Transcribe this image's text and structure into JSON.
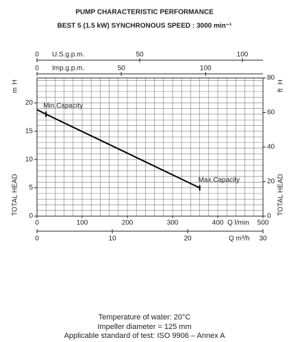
{
  "chart_data": {
    "type": "line",
    "title": "PUMP CHARACTERISTIC PERFORMANCE",
    "subtitle": "BEST 5  (1.5 kW) SYNCHRONOUS SPEED : 3000 min⁻¹",
    "x": [
      0,
      20,
      360
    ],
    "values": [
      18.8,
      18,
      5
    ],
    "color": "#000000",
    "xlim": [
      0,
      500
    ],
    "xticks": [
      0,
      100,
      200,
      300,
      400,
      500
    ],
    "xlabel": "Q  l/min",
    "ylim": [
      0,
      24.4
    ],
    "yticks": [
      0,
      5,
      10,
      15,
      20
    ],
    "ylabel": "TOTAL HEAD",
    "ysymbol": "H",
    "yunit": "m",
    "y2lim": [
      0,
      80
    ],
    "y2ticks": [
      0,
      20,
      40,
      60,
      80
    ],
    "y2label": "TOTAL HEAD",
    "y2symbol": "H",
    "y2unit": "ft",
    "grid": {
      "x_step": 20,
      "y_step": 1
    },
    "extra_x_axes": [
      {
        "label": "U.S.g.p.m.",
        "xlim": [
          0,
          110
        ],
        "xticks": [
          0,
          50,
          100
        ]
      },
      {
        "label": "Imp.g.p.m.",
        "xlim": [
          0,
          134
        ],
        "xticks": [
          0,
          50,
          100
        ]
      },
      {
        "label": "Q  m³/h",
        "xlim": [
          0,
          30
        ],
        "xticks": [
          0,
          10,
          20,
          30
        ]
      }
    ],
    "annotations": [
      {
        "text": "Min.Capacity",
        "x": 20,
        "y": 18
      },
      {
        "text": "Max.Capacity",
        "x": 360,
        "y": 5
      }
    ],
    "notes": [
      "Temperature of water: 20°C",
      "Impeller diameter = 125 mm",
      "Applicable standard of test: ISO 9906 – Annex A"
    ]
  }
}
